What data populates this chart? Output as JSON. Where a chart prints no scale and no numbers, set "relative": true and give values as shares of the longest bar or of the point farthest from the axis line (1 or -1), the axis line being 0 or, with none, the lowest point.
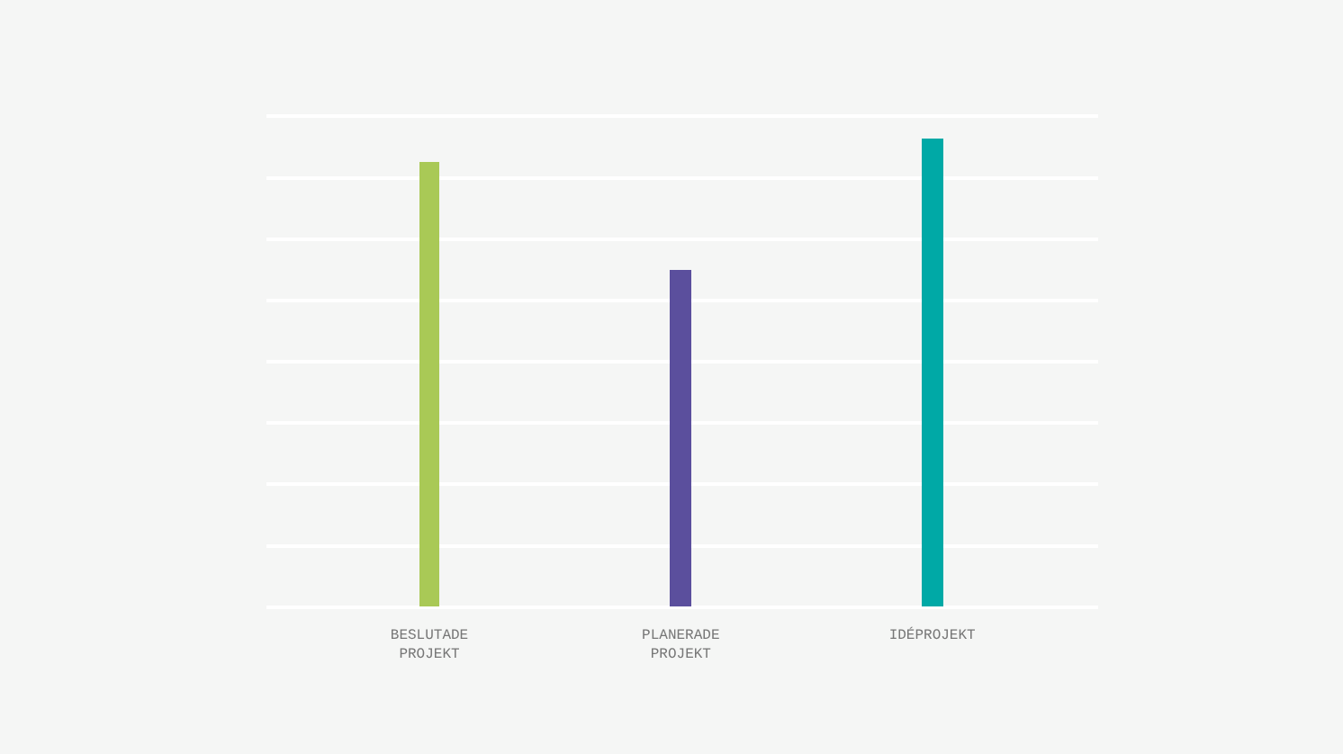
{
  "chart_data": {
    "type": "bar",
    "categories": [
      "BESLUTADE PROJEKT",
      "PLANERADE PROJEKT",
      "IDÉPROJEKT"
    ],
    "values": [
      0.95,
      0.72,
      1
    ],
    "colors": [
      "#a9c956",
      "#5b4f9d",
      "#00a9a6"
    ],
    "relative": true,
    "grid": "y",
    "legend": false
  }
}
